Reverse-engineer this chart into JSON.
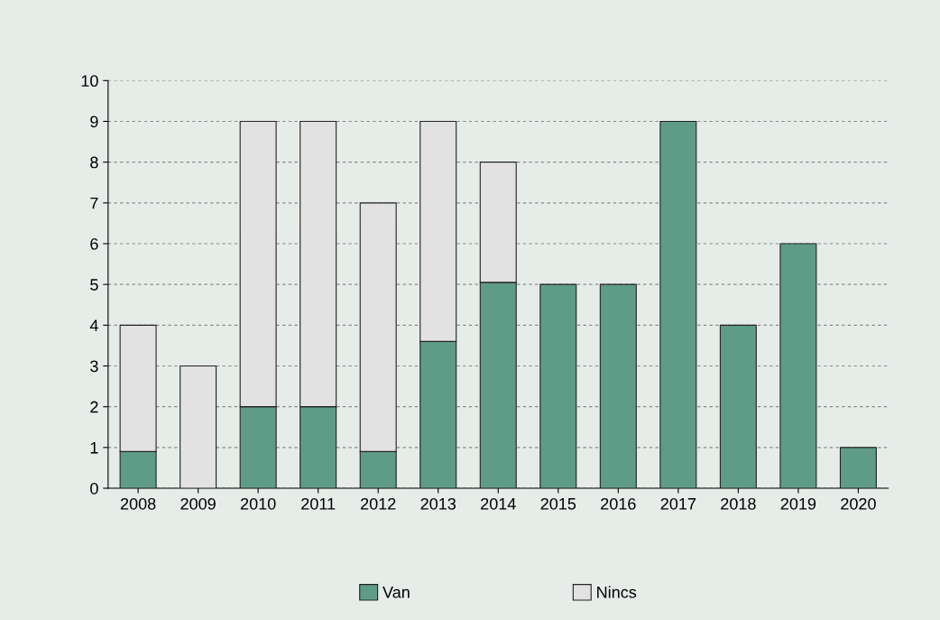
{
  "chart_data": {
    "type": "bar",
    "stacked": true,
    "categories": [
      "2008",
      "2009",
      "2010",
      "2011",
      "2012",
      "2013",
      "2014",
      "2015",
      "2016",
      "2017",
      "2018",
      "2019",
      "2020"
    ],
    "series": [
      {
        "name": "Van",
        "color": "#5f9c88",
        "values": [
          0.9,
          0,
          2,
          2,
          0.9,
          3.6,
          5.05,
          5,
          5,
          9,
          4,
          6,
          1
        ]
      },
      {
        "name": "Nincs",
        "color": "#e2e2e2",
        "values": [
          3.1,
          3,
          7,
          7,
          6.1,
          5.4,
          2.95,
          null,
          null,
          null,
          null,
          null,
          null
        ]
      }
    ],
    "ylim": [
      0,
      10
    ],
    "yticks": [
      0,
      1,
      2,
      3,
      4,
      5,
      6,
      7,
      8,
      9,
      10
    ],
    "grid": "y",
    "legend": "bottom"
  }
}
